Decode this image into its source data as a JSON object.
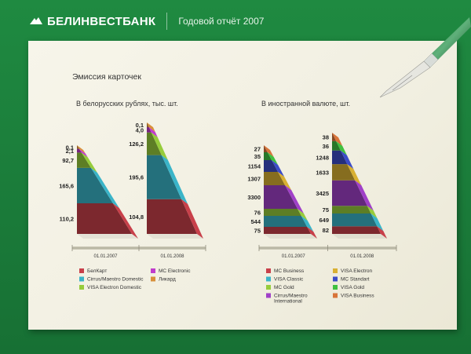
{
  "header": {
    "brand": "БЕЛИНВЕСТБАНК",
    "report_title": "Годовой отчёт 2007"
  },
  "section_title": "Эмиссия карточек",
  "colors": {
    "brand_green": "#1f8a41",
    "belkart": "#c8404a",
    "cirrus_maestro_domestic": "#3ab4c8",
    "visa_electron_domestic": "#96cc3c",
    "mc_electronic": "#c03ccc",
    "likard": "#d8903a",
    "mc_business": "#c8404a",
    "visa_classic": "#3ab4c8",
    "mc_gold": "#96cc3c",
    "cirrus_maestro_intl": "#a040c8",
    "visa_electron": "#d8b032",
    "mc_standart": "#3c4cc8",
    "visa_gold": "#40c040",
    "visa_business": "#d8743a"
  },
  "chart_data": [
    {
      "type": "bar",
      "title": "В белорусских рублях, тыс. шт.",
      "categories": [
        "01.01.2007",
        "01.01.2008"
      ],
      "stacked": true,
      "series": [
        {
          "name": "БелКарт",
          "values": [
            110.2,
            104.8
          ]
        },
        {
          "name": "Cirrus/Maestro Domestic",
          "values": [
            165.6,
            195.6
          ]
        },
        {
          "name": "VISA Electron Domestic",
          "values": [
            92.7,
            126.2
          ]
        },
        {
          "name": "MC Electronic",
          "values": [
            2.1,
            4.0
          ]
        },
        {
          "name": "Ликард",
          "values": [
            0.1,
            0.1
          ]
        }
      ],
      "value_labels": [
        [
          "110,2",
          "165,6",
          "92,7",
          "2,1",
          "0,1"
        ],
        [
          "104,8",
          "195,6",
          "126,2",
          "4,0",
          "0,1"
        ]
      ]
    },
    {
      "type": "bar",
      "title": "В иностранной валюте, шт.",
      "categories": [
        "01.01.2007",
        "01.01.2008"
      ],
      "stacked": true,
      "series": [
        {
          "name": "MC Business",
          "values": [
            75,
            82
          ]
        },
        {
          "name": "VISA Classic",
          "values": [
            544,
            649
          ]
        },
        {
          "name": "MC Gold",
          "values": [
            76,
            75
          ]
        },
        {
          "name": "Cirrus/Maestro International",
          "values": [
            3300,
            3425
          ]
        },
        {
          "name": "VISA Electron",
          "values": [
            1307,
            1633
          ]
        },
        {
          "name": "MC Standart",
          "values": [
            1154,
            1248
          ]
        },
        {
          "name": "VISA Gold",
          "values": [
            35,
            36
          ]
        },
        {
          "name": "VISA Business",
          "values": [
            27,
            38
          ]
        }
      ],
      "value_labels": [
        [
          "75",
          "544",
          "76",
          "3300",
          "1307",
          "1154",
          "35",
          "27"
        ],
        [
          "82",
          "649",
          "75",
          "3425",
          "1633",
          "1248",
          "36",
          "38"
        ]
      ]
    }
  ],
  "legend_left": [
    {
      "label": "БелКарт",
      "color": "#c8404a"
    },
    {
      "label": "MC Electronic",
      "color": "#c03ccc"
    },
    {
      "label": "Cirrus/Maestro Domestic",
      "color": "#3ab4c8"
    },
    {
      "label": "Ликард",
      "color": "#d8903a"
    },
    {
      "label": "VISA Electron Domestic",
      "color": "#96cc3c"
    }
  ],
  "legend_right": [
    {
      "label": "MC Business",
      "color": "#c8404a"
    },
    {
      "label": "VISA Electron",
      "color": "#d8b032"
    },
    {
      "label": "VISA Classic",
      "color": "#3ab4c8"
    },
    {
      "label": "MC Standart",
      "color": "#3c4cc8"
    },
    {
      "label": "MC Gold",
      "color": "#96cc3c"
    },
    {
      "label": "VISA Gold",
      "color": "#40c040"
    },
    {
      "label": "Cirrus/Maestro International",
      "color": "#a040c8"
    },
    {
      "label": "VISA Business",
      "color": "#d8743a"
    }
  ]
}
